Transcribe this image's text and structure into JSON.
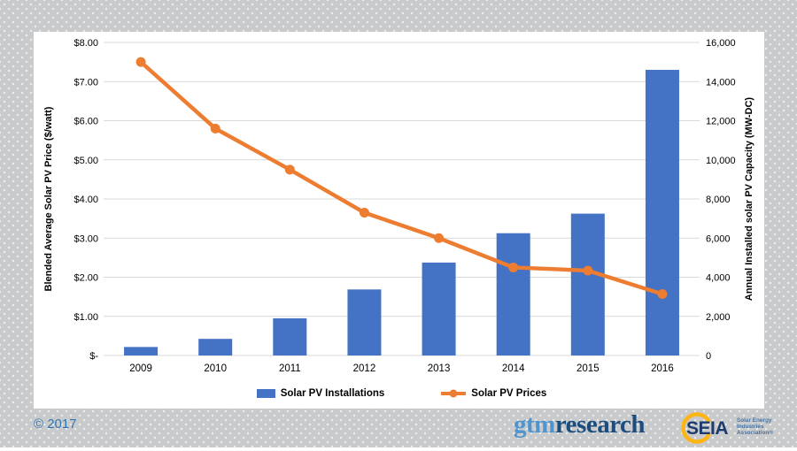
{
  "colors": {
    "bar_blue": "#4472C4",
    "line_orange": "#ED7D31",
    "gridline": "#D9D9D9",
    "copyright_blue": "#2E74B5",
    "gtm_light": "#4E94CF",
    "gtm_dark": "#1B4D7E",
    "seia_navy": "#1C3C6D",
    "seia_yellow": "#FDB515",
    "seia_small_text": "#46709E"
  },
  "footer": {
    "copyright": "© 2017",
    "gtm_logo": {
      "part1": "gtm",
      "part2": "research"
    },
    "seia": {
      "acronym": "SEIA",
      "line1": "Solar Energy",
      "line2": "Industries",
      "line3": "Association®"
    }
  },
  "chart_data": {
    "type": "bar",
    "subtype": "bar-line-combo",
    "categories": [
      "2009",
      "2010",
      "2011",
      "2012",
      "2013",
      "2014",
      "2015",
      "2016"
    ],
    "series": [
      {
        "name": "Solar PV Installations",
        "type": "bar",
        "axis": "right",
        "color": "#4472C4",
        "values": [
          435,
          850,
          1900,
          3375,
          4750,
          6250,
          7250,
          14600
        ]
      },
      {
        "name": "Solar PV Prices",
        "type": "line",
        "axis": "left",
        "color": "#ED7D31",
        "values": [
          7.5,
          5.8,
          4.75,
          3.65,
          3.0,
          2.25,
          2.17,
          1.57
        ]
      }
    ],
    "left_axis": {
      "title": "Blended Average Solar PV Price ($/watt)",
      "min": 0,
      "max": 8,
      "ticks": [
        "$8.00",
        "$7.00",
        "$6.00",
        "$5.00",
        "$4.00",
        "$3.00",
        "$2.00",
        "$1.00",
        "$-"
      ]
    },
    "right_axis": {
      "title": "Annual Installed solar PV Capacity (MW-DC)",
      "min": 0,
      "max": 16000,
      "ticks": [
        "16,000",
        "14,000",
        "12,000",
        "10,000",
        "8,000",
        "6,000",
        "4,000",
        "2,000",
        "0"
      ]
    },
    "grid": true,
    "legend_position": "bottom",
    "legend": [
      {
        "label": "Solar PV Installations",
        "marker": "bar",
        "color": "#4472C4"
      },
      {
        "label": "Solar PV Prices",
        "marker": "line",
        "color": "#ED7D31"
      }
    ]
  }
}
